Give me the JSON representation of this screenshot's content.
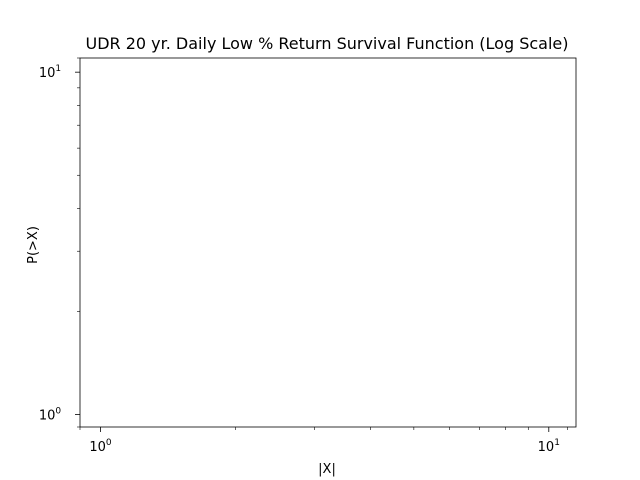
{
  "chart_data": {
    "type": "line",
    "title": "UDR 20 yr. Daily Low % Return Survival Function (Log Scale)",
    "xlabel": "|X|",
    "ylabel": "P(>X)",
    "xscale": "log",
    "yscale": "log",
    "xlim": [
      0.9,
      11.5
    ],
    "ylim": [
      0.92,
      11
    ],
    "x_major_ticks": [
      {
        "value": 1,
        "base": "10",
        "exp": "0"
      },
      {
        "value": 10,
        "base": "10",
        "exp": "1"
      }
    ],
    "y_major_ticks": [
      {
        "value": 1,
        "base": "10",
        "exp": "0"
      },
      {
        "value": 10,
        "base": "10",
        "exp": "1"
      }
    ],
    "x_minor_ticks": [
      0.9,
      2,
      3,
      4,
      5,
      6,
      7,
      8,
      9,
      11
    ],
    "y_minor_ticks": [
      0.92,
      2,
      3,
      4,
      5,
      6,
      7,
      8,
      9,
      11
    ],
    "series": [],
    "grid": false,
    "legend": "none",
    "colors": {
      "axis": "#000000",
      "background": "#ffffff"
    }
  }
}
